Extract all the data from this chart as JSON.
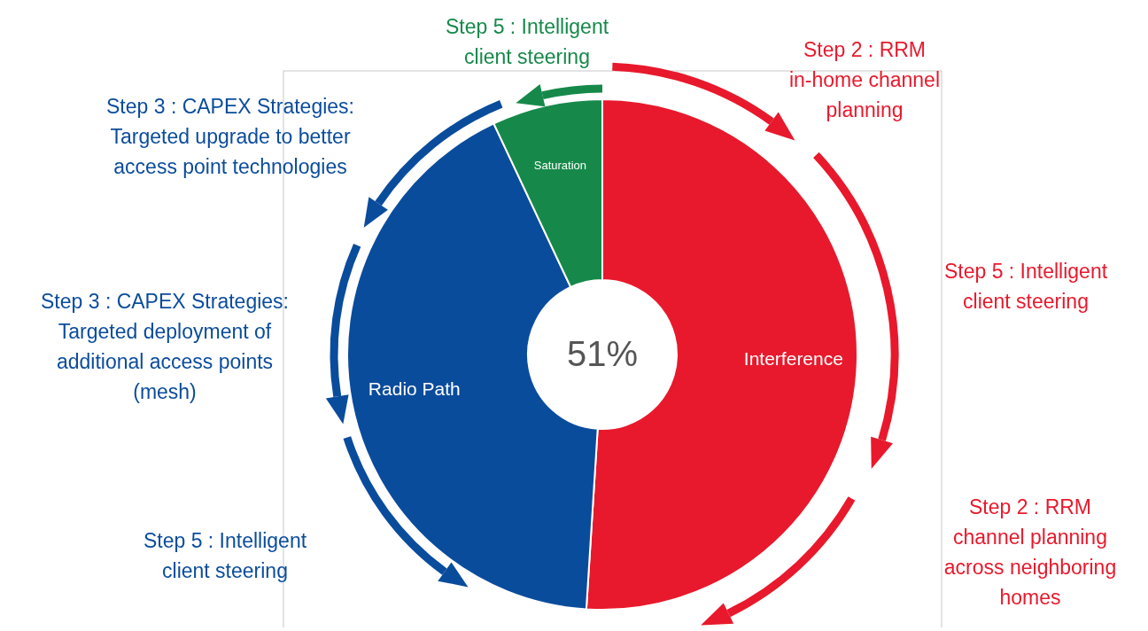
{
  "chart_data": {
    "type": "donut",
    "categories": [
      "Interference",
      "Radio Path",
      "Saturation"
    ],
    "values": [
      51,
      42,
      7
    ],
    "colors": [
      "#e8192c",
      "#0a4c9c",
      "#16894a"
    ],
    "annotations": [
      "51%",
      "Step 5  : Intelligent\nclient steering",
      "Step 2 : RRM\nin-home channel\nplanning",
      "Step 3 :  CAPEX Strategies:\nTargeted upgrade to better\naccess point technologies",
      "Step 5 : Intelligent\nclient steering",
      "Step 3 :  CAPEX Strategies:\nTargeted deployment of\nadditional access points\n(mesh)",
      "Step 5 : Intelligent\nclient steering",
      "Step 2 : RRM\nchannel planning\nacross neighboring\nhomes"
    ]
  }
}
